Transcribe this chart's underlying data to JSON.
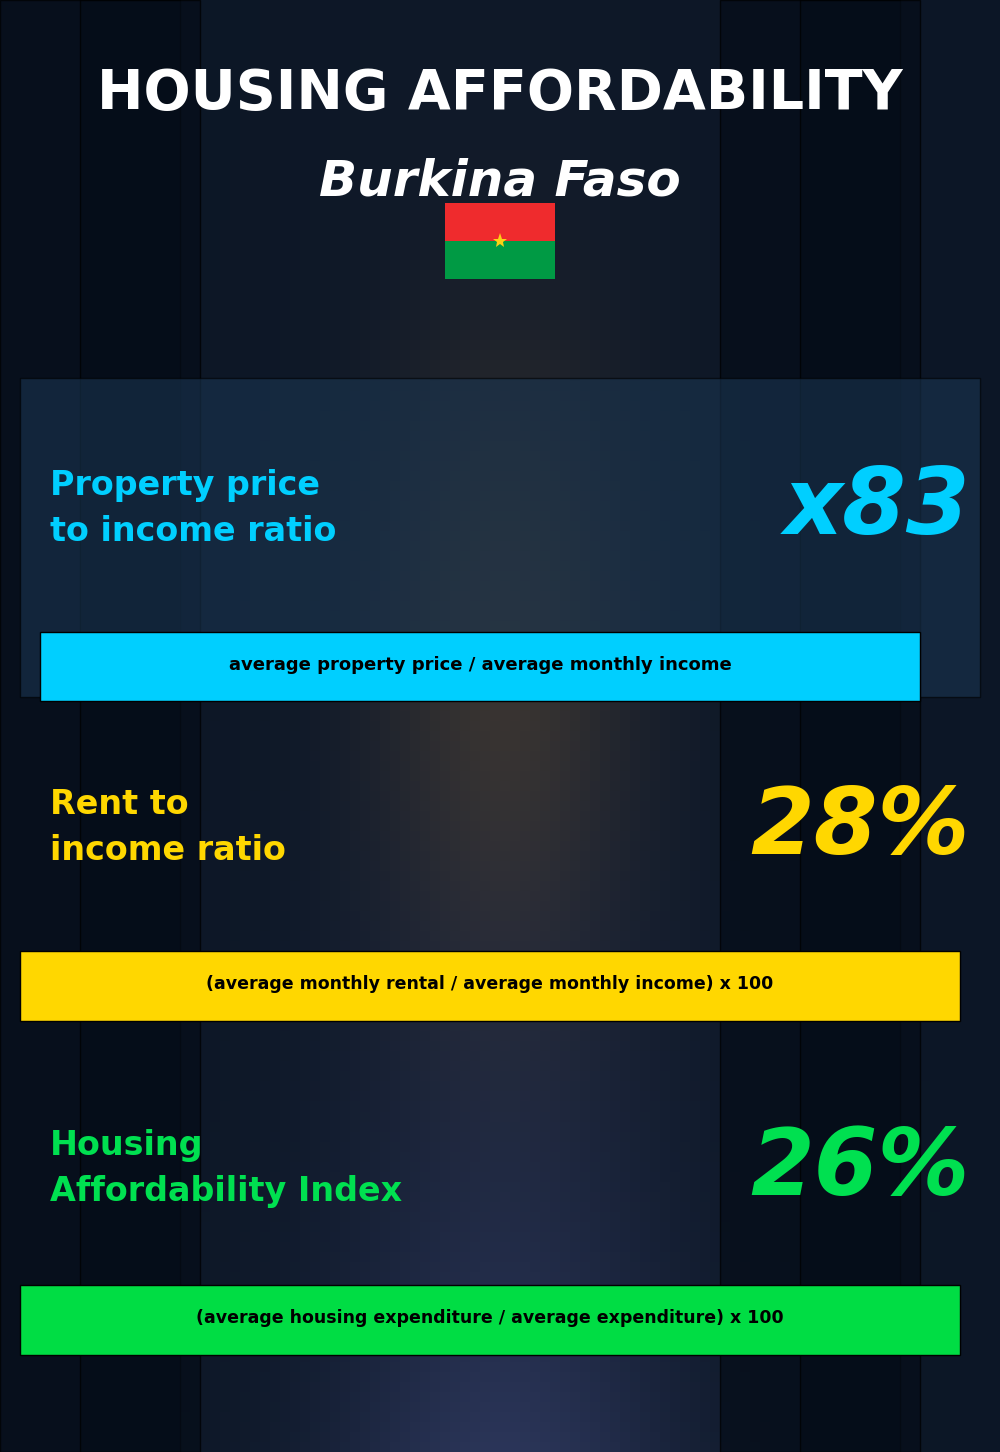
{
  "title_line1": "HOUSING AFFORDABILITY",
  "title_line2": "Burkina Faso",
  "bg_color": "#0a1520",
  "title1_color": "#ffffff",
  "title2_color": "#ffffff",
  "section1_label": "Property price\nto income ratio",
  "section1_value": "x83",
  "section1_label_color": "#00cfff",
  "section1_value_color": "#00cfff",
  "section1_formula": "average property price / average monthly income",
  "section1_formula_bg": "#00cfff",
  "section1_formula_color": "#000000",
  "section2_label": "Rent to\nincome ratio",
  "section2_value": "28%",
  "section2_label_color": "#ffd700",
  "section2_value_color": "#ffd700",
  "section2_formula": "(average monthly rental / average monthly income) x 100",
  "section2_formula_bg": "#ffd700",
  "section2_formula_color": "#000000",
  "section3_label": "Housing\nAffordability Index",
  "section3_value": "26%",
  "section3_label_color": "#00e050",
  "section3_value_color": "#00e050",
  "section3_formula": "(average housing expenditure / average expenditure) x 100",
  "section3_formula_bg": "#00dd44",
  "section3_formula_color": "#000000",
  "flag_red": "#ef2b2d",
  "flag_green": "#009a44",
  "flag_star_color": "#fcd116",
  "panel1_color": "#1a3550",
  "panel1_alpha": 0.6,
  "figw": 10.0,
  "figh": 14.52
}
